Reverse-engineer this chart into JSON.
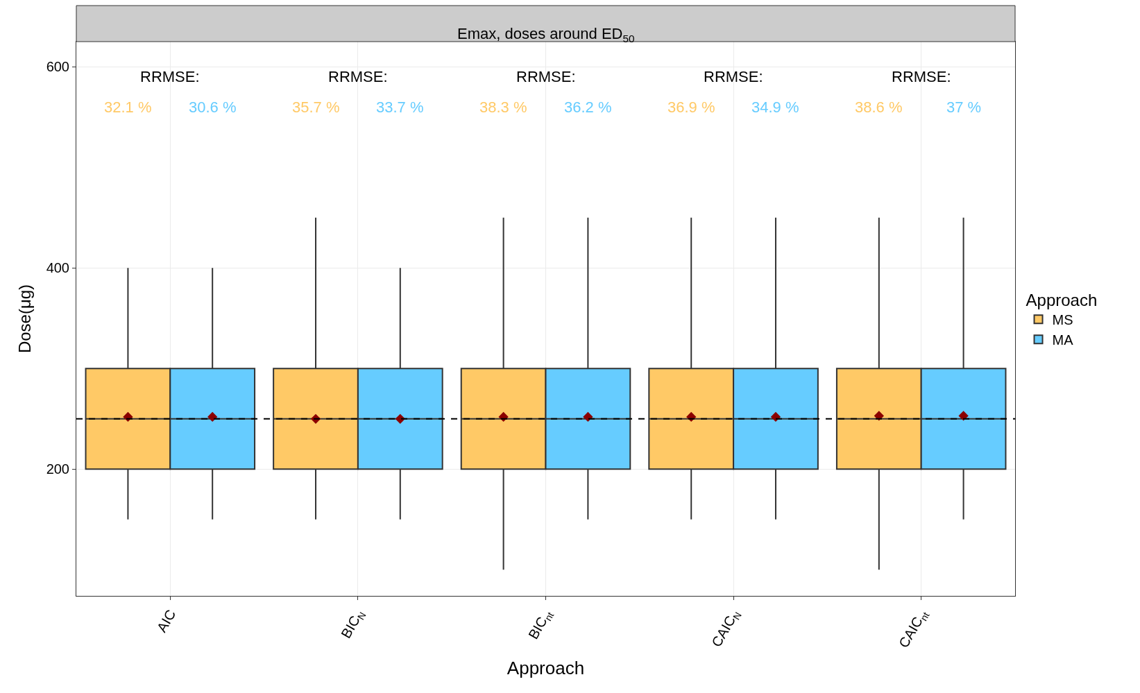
{
  "chart_data": {
    "type": "box",
    "title": "Emax, doses around ED$_{50}$",
    "xlabel": "Approach",
    "ylabel": "Dose(μg)",
    "legend_title": "Approach",
    "categories": [
      "AIC",
      "BIC$_{N}$",
      "BIC$_{nt}$",
      "CAIC$_{N}$",
      "CAIC$_{nt}$"
    ],
    "series": [
      {
        "name": "MS",
        "color": "#ffc966",
        "boxes": [
          {
            "low": 150,
            "q1": 200,
            "median": 250,
            "q3": 300,
            "high": 400,
            "mean": 252
          },
          {
            "low": 150,
            "q1": 200,
            "median": 250,
            "q3": 300,
            "high": 450,
            "mean": 250
          },
          {
            "low": 100,
            "q1": 200,
            "median": 250,
            "q3": 300,
            "high": 450,
            "mean": 252
          },
          {
            "low": 150,
            "q1": 200,
            "median": 250,
            "q3": 300,
            "high": 450,
            "mean": 252
          },
          {
            "low": 100,
            "q1": 200,
            "median": 250,
            "q3": 300,
            "high": 450,
            "mean": 253
          }
        ]
      },
      {
        "name": "MA",
        "color": "#66ccff",
        "boxes": [
          {
            "low": 150,
            "q1": 200,
            "median": 250,
            "q3": 300,
            "high": 400,
            "mean": 252
          },
          {
            "low": 150,
            "q1": 200,
            "median": 250,
            "q3": 300,
            "high": 400,
            "mean": 250
          },
          {
            "low": 150,
            "q1": 200,
            "median": 250,
            "q3": 300,
            "high": 450,
            "mean": 252
          },
          {
            "low": 150,
            "q1": 200,
            "median": 250,
            "q3": 300,
            "high": 450,
            "mean": 252
          },
          {
            "low": 150,
            "q1": 200,
            "median": 250,
            "q3": 300,
            "high": 450,
            "mean": 253
          }
        ]
      }
    ],
    "ref_lines": [
      {
        "axis": "y",
        "value": 250,
        "color": "#000000",
        "line_style": "dashed"
      }
    ],
    "annotations": [
      "RRMSE:",
      "32.1 %",
      "30.6 %",
      "RRMSE:",
      "35.7 %",
      "33.7 %",
      "RRMSE:",
      "38.3 %",
      "36.2 %",
      "RRMSE:",
      "36.9 %",
      "34.9 %",
      "RRMSE:",
      "38.6 %",
      "37 %"
    ],
    "ylim": [
      74,
      625
    ],
    "yticks": [
      200,
      400,
      600
    ],
    "grid": true,
    "legend": "right",
    "marker": "diamond"
  }
}
